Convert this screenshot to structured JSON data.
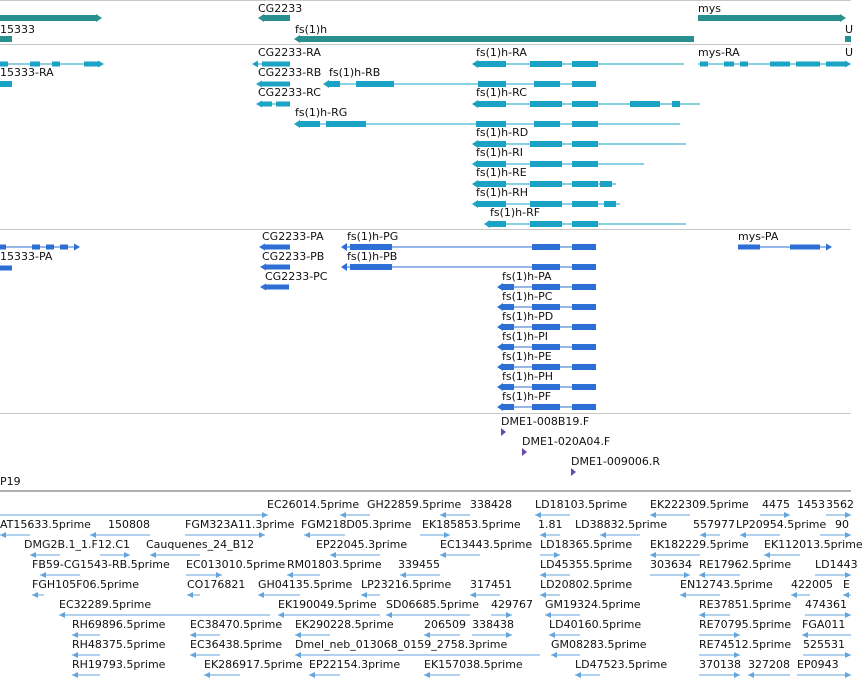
{
  "colors": {
    "gene": "#2a8f8f",
    "transcript": "#1aa3c4",
    "cds": "#2e6fd6",
    "est_marker": "#6a4aa8",
    "est": "#63a4dc",
    "separator": "#c8c8c8"
  },
  "tracks": {
    "genes": {
      "labels": [
        "CG2233",
        "fs(1)h",
        "mys",
        "15333",
        "U"
      ]
    },
    "transcripts": {
      "labels": [
        "CG2233-RA",
        "fs(1)h-RA",
        "mys-RA",
        "15333-RA",
        "CG2233-RB",
        "fs(1)h-RB",
        "CG2233-RC",
        "fs(1)h-RC",
        "fs(1)h-RG",
        "fs(1)h-RD",
        "fs(1)h-RI",
        "fs(1)h-RE",
        "fs(1)h-RH",
        "fs(1)h-RF",
        "U"
      ]
    },
    "proteins": {
      "labels": [
        "CG2233-PA",
        "fs(1)h-PG",
        "mys-PA",
        "15333-PA",
        "CG2233-PB",
        "fs(1)h-PB",
        "CG2233-PC",
        "fs(1)h-PA",
        "fs(1)h-PC",
        "fs(1)h-PD",
        "fs(1)h-PI",
        "fs(1)h-PE",
        "fs(1)h-PH",
        "fs(1)h-PF"
      ]
    },
    "markers": {
      "labels": [
        "DME1-008B19.F",
        "DME1-020A04.F",
        "DME1-009006.R",
        "P19"
      ]
    },
    "ests": {
      "labels": [
        "EC26014.5prime",
        "GH22859.5prime",
        "338428",
        "LD18103.5prime",
        "EK222309.5prime",
        "4475",
        "1453",
        "3562",
        "AT15633.5prime",
        "150808",
        "FGM323A11.3prime",
        "FGM218D05.3prime",
        "EK185853.5prime",
        "1.81",
        "LD38832.5prime",
        "557977",
        "LP20954.5prime",
        "90",
        "DMG2B.1_1.F12.C1",
        "Cauquenes_24_B12",
        "EP22045.3prime",
        "EC13443.5prime",
        "LD18365.5prime",
        "EK182229.5prime",
        "EK112013.5prime",
        "FB59-CG1543-RB.5prime",
        "EC013010.5prime",
        "RM01803.5prime",
        "339455",
        "LD45355.5prime",
        "303634",
        "RE17962.5prime",
        "LD1443",
        "FGH105F06.5prime",
        "CO176821",
        "GH04135.5prime",
        "LP23216.5prime",
        "317451",
        "LD20802.5prime",
        "EN12743.5prime",
        "422005",
        "E",
        "EC32289.5prime",
        "EK190049.5prime",
        "SD06685.5prime",
        "429767",
        "GM19324.5prime",
        "RE37851.5prime",
        "474361",
        "RH69896.5prime",
        "EC38470.5prime",
        "EK290228.5prime",
        "206509",
        "338438",
        "LD40160.5prime",
        "RE70795.5prime",
        "FGA011",
        "RH48375.5prime",
        "EC36438.5prime",
        "Dmel_neb_013068_0159_2758.3prime",
        "GM08283.5prime",
        "RE74512.5prime",
        "525531",
        "RH19793.5prime",
        "EK286917.5prime",
        "EP22154.3prime",
        "EK157038.5prime",
        "LD47523.5prime",
        "370138",
        "327208",
        "EP0943"
      ]
    }
  }
}
